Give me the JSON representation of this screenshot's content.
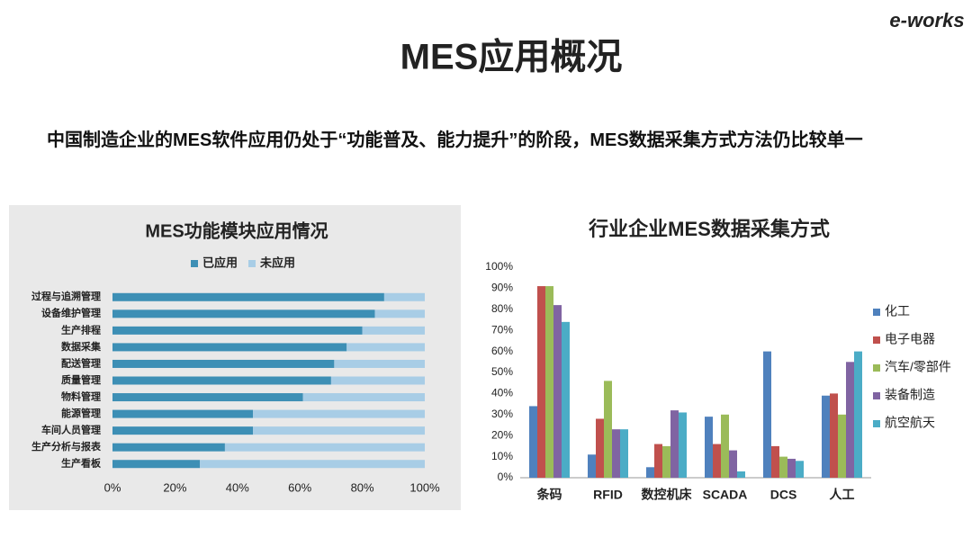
{
  "logo": "e-works",
  "title": "MES应用概况",
  "subtitle": "中国制造企业的MES软件应用仍处于“功能普及、能力提升”的阶段，MES数据采集方式方法仍比较单一",
  "chart_data": [
    {
      "type": "bar",
      "orientation": "horizontal",
      "stacked": true,
      "title": "MES功能模块应用情况",
      "categories": [
        "过程与追溯管理",
        "设备维护管理",
        "生产排程",
        "数据采集",
        "配送管理",
        "质量管理",
        "物料管理",
        "能源管理",
        "车间人员管理",
        "生产分析与报表",
        "生产看板"
      ],
      "series": [
        {
          "name": "已应用",
          "color": "#3d8fb5",
          "values": [
            87,
            84,
            80,
            75,
            71,
            70,
            61,
            45,
            45,
            36,
            28
          ]
        },
        {
          "name": "未应用",
          "color": "#a8cde6",
          "values": [
            13,
            16,
            20,
            25,
            29,
            30,
            39,
            55,
            55,
            64,
            72
          ]
        }
      ],
      "xlim": [
        0,
        100
      ],
      "xticks": [
        {
          "value": 0,
          "label": "0%"
        },
        {
          "value": 20,
          "label": "20%"
        },
        {
          "value": 40,
          "label": "40%"
        },
        {
          "value": 60,
          "label": "60%"
        },
        {
          "value": 80,
          "label": "80%"
        },
        {
          "value": 100,
          "label": "100%"
        }
      ],
      "legend": "top",
      "grid": false
    },
    {
      "type": "bar",
      "orientation": "vertical",
      "stacked": false,
      "title": "行业企业MES数据采集方式",
      "categories": [
        "条码",
        "RFID",
        "数控机床",
        "SCADA",
        "DCS",
        "人工"
      ],
      "series": [
        {
          "name": "化工",
          "color": "#4f81bd",
          "values": [
            34,
            11,
            5,
            29,
            60,
            39
          ]
        },
        {
          "name": "电子电器",
          "color": "#c0504d",
          "values": [
            91,
            28,
            16,
            16,
            15,
            40
          ]
        },
        {
          "name": "汽车/零部件",
          "color": "#9bbb59",
          "values": [
            91,
            46,
            15,
            30,
            10,
            30
          ]
        },
        {
          "name": "装备制造",
          "color": "#8064a2",
          "values": [
            82,
            23,
            32,
            13,
            9,
            55
          ]
        },
        {
          "name": "航空航天",
          "color": "#4bacc6",
          "values": [
            74,
            23,
            31,
            3,
            8,
            60
          ]
        }
      ],
      "ylim": [
        0,
        100
      ],
      "yticks": [
        {
          "value": 0,
          "label": "0%"
        },
        {
          "value": 10,
          "label": "10%"
        },
        {
          "value": 20,
          "label": "20%"
        },
        {
          "value": 30,
          "label": "30%"
        },
        {
          "value": 40,
          "label": "40%"
        },
        {
          "value": 50,
          "label": "50%"
        },
        {
          "value": 60,
          "label": "60%"
        },
        {
          "value": 70,
          "label": "70%"
        },
        {
          "value": 80,
          "label": "80%"
        },
        {
          "value": 90,
          "label": "90%"
        },
        {
          "value": 100,
          "label": "100%"
        }
      ],
      "legend": "right",
      "grid": false
    }
  ]
}
